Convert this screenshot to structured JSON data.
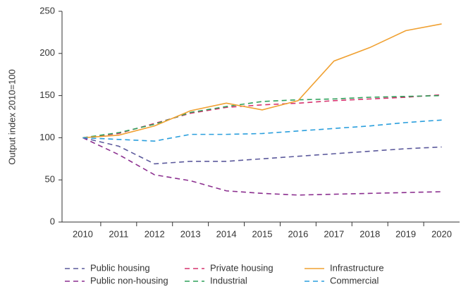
{
  "chart_data": {
    "type": "line",
    "y_label": "Output index 2010=100",
    "categories": [
      "2010",
      "2011",
      "2012",
      "2013",
      "2014",
      "2015",
      "2016",
      "2017",
      "2018",
      "2019",
      "2020"
    ],
    "series": [
      {
        "name": "Public housing",
        "color": "#5c5a9c",
        "style": "dashed",
        "values": [
          100,
          90,
          69,
          72,
          72,
          75,
          78,
          81,
          84,
          87,
          89
        ]
      },
      {
        "name": "Public non-housing",
        "color": "#8b2f8f",
        "style": "dashed",
        "values": [
          100,
          80,
          56,
          49,
          37,
          34,
          32,
          33,
          34,
          35,
          36
        ]
      },
      {
        "name": "Private housing",
        "color": "#d6336e",
        "style": "dashed",
        "values": [
          100,
          105,
          117,
          129,
          136,
          139,
          141,
          144,
          146,
          148,
          151
        ]
      },
      {
        "name": "Industrial",
        "color": "#2ea05a",
        "style": "dashed",
        "values": [
          100,
          106,
          116,
          130,
          137,
          143,
          145,
          146,
          148,
          149,
          150
        ]
      },
      {
        "name": "Infrastructure",
        "color": "#f0a132",
        "style": "solid",
        "values": [
          100,
          103,
          114,
          132,
          141,
          133,
          144,
          191,
          207,
          227,
          235
        ]
      },
      {
        "name": "Commercial",
        "color": "#2b9fdd",
        "style": "dashed",
        "values": [
          100,
          98,
          96,
          104,
          104,
          105,
          108,
          111,
          114,
          118,
          121
        ]
      }
    ],
    "ylim": [
      0,
      250
    ],
    "yticks": [
      0,
      50,
      100,
      150,
      200,
      250
    ],
    "grid": false,
    "legend": "bottom"
  }
}
